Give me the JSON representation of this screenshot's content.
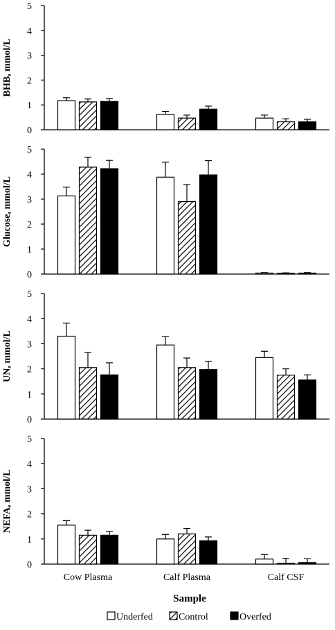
{
  "chart_data": [
    {
      "type": "bar",
      "ylabel": "BHB, mmol/L",
      "ylim": [
        0,
        5
      ],
      "yticks": [
        "0",
        "1",
        "2",
        "3",
        "4",
        "5"
      ],
      "categories": [
        "Cow Plasma",
        "Calf Plasma",
        "Calf CSF"
      ],
      "series": [
        {
          "name": "Underfed",
          "values": [
            1.17,
            0.62,
            0.47
          ],
          "errors": [
            0.12,
            0.12,
            0.12
          ]
        },
        {
          "name": "Control",
          "values": [
            1.12,
            0.47,
            0.32
          ],
          "errors": [
            0.12,
            0.12,
            0.12
          ]
        },
        {
          "name": "Overfed",
          "values": [
            1.14,
            0.83,
            0.32
          ],
          "errors": [
            0.12,
            0.12,
            0.1
          ]
        }
      ]
    },
    {
      "type": "bar",
      "ylabel": "Glucose, mmol/L",
      "ylim": [
        0,
        5
      ],
      "yticks": [
        "0",
        "1",
        "2",
        "3",
        "4",
        "5"
      ],
      "categories": [
        "Cow Plasma",
        "Calf Plasma",
        "Calf CSF"
      ],
      "series": [
        {
          "name": "Underfed",
          "values": [
            3.13,
            3.88,
            0.04
          ],
          "errors": [
            0.35,
            0.6,
            0.02
          ]
        },
        {
          "name": "Control",
          "values": [
            4.28,
            2.9,
            0.03
          ],
          "errors": [
            0.4,
            0.68,
            0.02
          ]
        },
        {
          "name": "Overfed",
          "values": [
            4.22,
            3.97,
            0.04
          ],
          "errors": [
            0.33,
            0.57,
            0.02
          ]
        }
      ]
    },
    {
      "type": "bar",
      "ylabel": "UN, mmol/L",
      "ylim": [
        0,
        5
      ],
      "yticks": [
        "0",
        "1",
        "2",
        "3",
        "4",
        "5"
      ],
      "categories": [
        "Cow Plasma",
        "Calf Plasma",
        "Calf CSF"
      ],
      "series": [
        {
          "name": "Underfed",
          "values": [
            3.3,
            2.95,
            2.45
          ],
          "errors": [
            0.52,
            0.33,
            0.25
          ]
        },
        {
          "name": "Control",
          "values": [
            2.05,
            2.05,
            1.75
          ],
          "errors": [
            0.6,
            0.38,
            0.25
          ]
        },
        {
          "name": "Overfed",
          "values": [
            1.76,
            1.97,
            1.56
          ],
          "errors": [
            0.48,
            0.33,
            0.2
          ]
        }
      ]
    },
    {
      "type": "bar",
      "ylabel": "NEFA, mmol/L",
      "ylim": [
        0,
        5
      ],
      "yticks": [
        "0",
        "1",
        "2",
        "3",
        "4",
        "5"
      ],
      "categories": [
        "Cow Plasma",
        "Calf Plasma",
        "Calf CSF"
      ],
      "series": [
        {
          "name": "Underfed",
          "values": [
            1.55,
            1.0,
            0.2
          ],
          "errors": [
            0.18,
            0.18,
            0.18
          ]
        },
        {
          "name": "Control",
          "values": [
            1.15,
            1.2,
            0.03
          ],
          "errors": [
            0.2,
            0.22,
            0.2
          ]
        },
        {
          "name": "Overfed",
          "values": [
            1.15,
            0.93,
            0.06
          ],
          "errors": [
            0.15,
            0.15,
            0.15
          ]
        }
      ]
    }
  ],
  "xlabel": "Sample",
  "legend": [
    {
      "label": "Underfed",
      "fill": "white"
    },
    {
      "label": "Control",
      "fill": "hatched"
    },
    {
      "label": "Overfed",
      "fill": "black"
    }
  ],
  "legend_position": "bottom",
  "colors": {
    "bar_edge": "#000000",
    "solid": "#000000",
    "open": "#ffffff"
  }
}
